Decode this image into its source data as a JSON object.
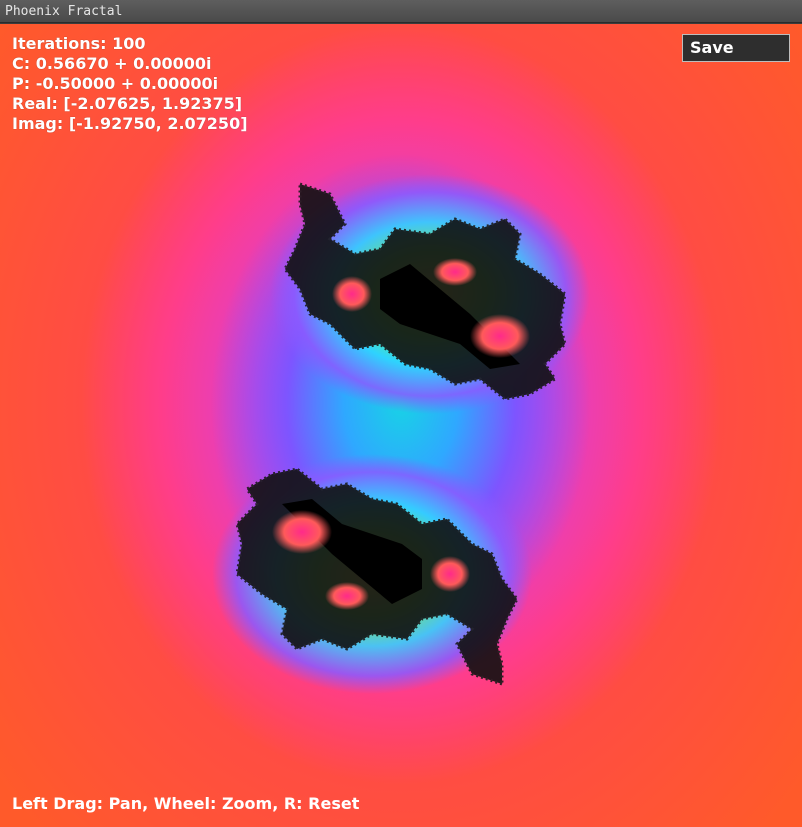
{
  "window": {
    "title": "Phoenix Fractal"
  },
  "hud": {
    "iterations": "Iterations: 100",
    "c_value": "C: 0.56670 + 0.00000i",
    "p_value": "P: -0.50000 + 0.00000i",
    "real_range": "Real: [-2.07625, 1.92375]",
    "imag_range": "Imag: [-1.92750, 2.07250]"
  },
  "toolbar": {
    "save_label": "Save"
  },
  "help": {
    "text": "Left Drag: Pan, Wheel: Zoom, R: Reset"
  },
  "colors": {
    "outer": "#ff5a2a",
    "mid": "#ff3d8a",
    "inner_purple": "#b03cff",
    "inner_cyan": "#18d2e6",
    "set_interior": "#000000"
  }
}
